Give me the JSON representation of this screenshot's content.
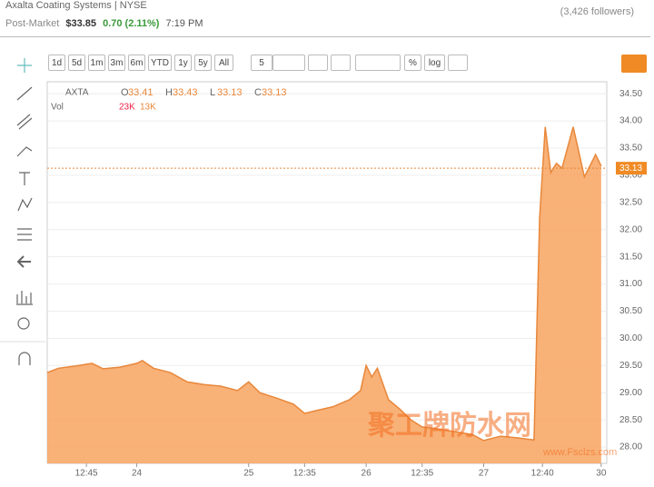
{
  "header": {
    "company": "Axalta Coating Systems",
    "separator": "|",
    "exchange": "NYSE",
    "followers": "(3,426 followers)",
    "session": "Post-Market",
    "price": "$33.85",
    "change": "0.70 (2.11%)",
    "time": "7:19 PM"
  },
  "toolbar": {
    "ranges": [
      "1d",
      "5d",
      "1m",
      "3m",
      "6m",
      "YTD",
      "1y",
      "5y",
      "All"
    ],
    "interval": "5",
    "percent": "%",
    "log": "log"
  },
  "legend": {
    "symbol": "AXTA",
    "ohlc": [
      {
        "label": "O",
        "value": 33.41
      },
      {
        "label": "H",
        "value": 33.43
      },
      {
        "label": "L",
        "value": 33.13
      },
      {
        "label": "C",
        "value": 33.13
      }
    ],
    "volume_label": "Vol",
    "volumes": [
      "23K",
      "13K"
    ]
  },
  "watermark": {
    "text": "聚工牌防水网",
    "url": "www.Fsclzs.com"
  },
  "chart_data": {
    "type": "area",
    "color": "#f7a968",
    "line_color": "#e8873a",
    "x": [
      0,
      2,
      5,
      8,
      10,
      13,
      16,
      17,
      19,
      22,
      25,
      28,
      31,
      34,
      36,
      38,
      41,
      44,
      46,
      48,
      51,
      54,
      56,
      57,
      58,
      59,
      61,
      63,
      65,
      67,
      70,
      73,
      76,
      78,
      81,
      84,
      87,
      88,
      89,
      90,
      91,
      92,
      94,
      96,
      98,
      99
    ],
    "values": [
      29.37,
      29.45,
      29.49,
      29.54,
      29.44,
      29.47,
      29.54,
      29.59,
      29.45,
      29.37,
      29.2,
      29.15,
      29.12,
      29.04,
      29.2,
      29.0,
      28.9,
      28.79,
      28.62,
      28.67,
      28.74,
      28.87,
      29.04,
      29.5,
      29.29,
      29.45,
      28.87,
      28.7,
      28.5,
      28.37,
      28.33,
      28.28,
      28.23,
      28.12,
      28.2,
      28.17,
      28.13,
      32.21,
      33.89,
      33.05,
      33.22,
      33.13,
      33.89,
      32.97,
      33.38,
      33.17
    ],
    "xlim": [
      0,
      100
    ],
    "ylim": [
      27.7,
      34.72
    ],
    "xticks": [
      {
        "value": 7,
        "label": "12:45"
      },
      {
        "value": 16,
        "label": "24"
      },
      {
        "value": 36,
        "label": "25"
      },
      {
        "value": 46,
        "label": "12:35"
      },
      {
        "value": 57,
        "label": "26"
      },
      {
        "value": 67,
        "label": "12:35"
      },
      {
        "value": 78,
        "label": "27"
      },
      {
        "value": 88.5,
        "label": "12:40"
      },
      {
        "value": 99,
        "label": "30"
      }
    ],
    "yticks": [
      {
        "value": 28,
        "label": "28.00"
      },
      {
        "value": 28.5,
        "label": "28.50"
      },
      {
        "value": 29,
        "label": "29.00"
      },
      {
        "value": 29.5,
        "label": "29.50"
      },
      {
        "value": 30,
        "label": "30.00"
      },
      {
        "value": 30.5,
        "label": "30.50"
      },
      {
        "value": 31,
        "label": "31.00"
      },
      {
        "value": 31.5,
        "label": "31.50"
      },
      {
        "value": 32,
        "label": "32.00"
      },
      {
        "value": 32.5,
        "label": "32.50"
      },
      {
        "value": 33,
        "label": "33.00"
      },
      {
        "value": 33.5,
        "label": "33.50"
      },
      {
        "value": 34,
        "label": "34.00"
      },
      {
        "value": 34.5,
        "label": "34.50"
      }
    ],
    "last_price": 33.13,
    "grid": true
  }
}
